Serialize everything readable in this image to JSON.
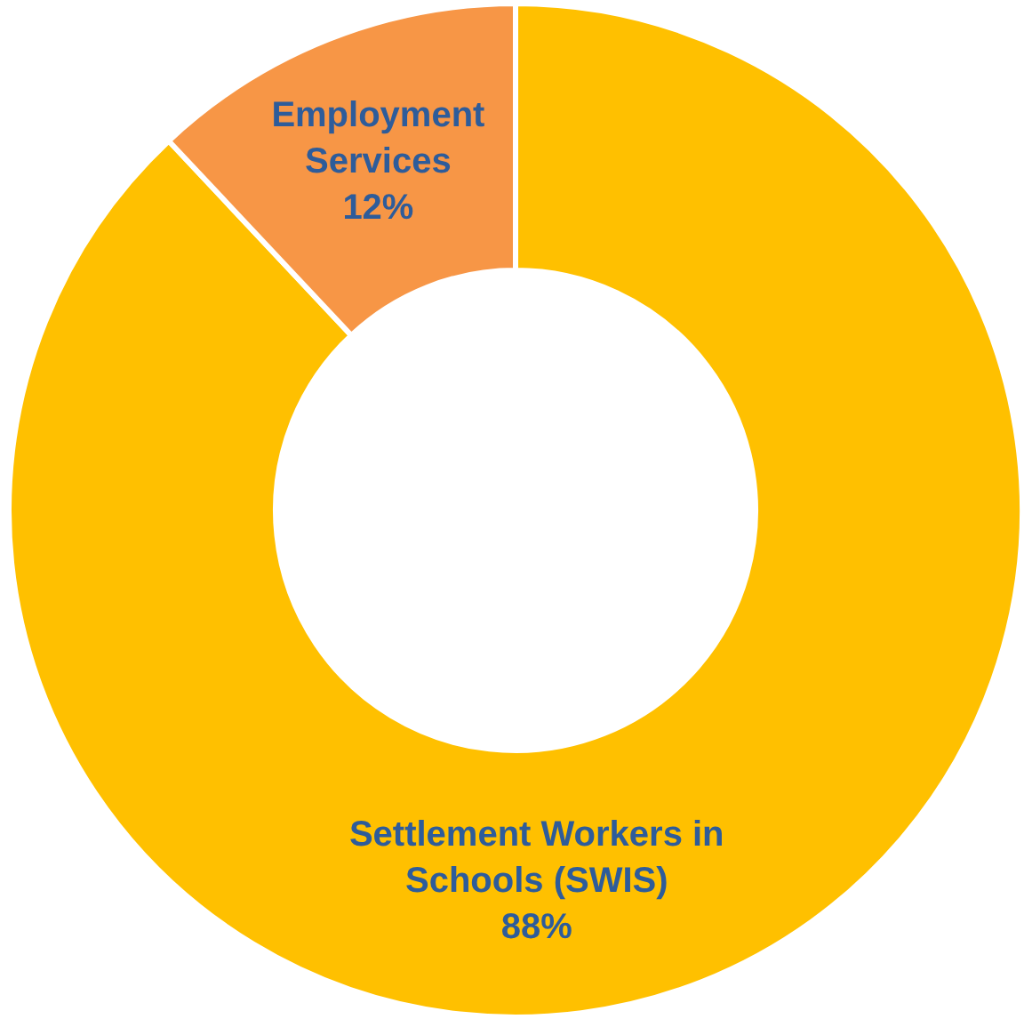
{
  "chart_data": {
    "type": "donut",
    "categories": [
      "Settlement Workers in Schools (SWIS)",
      "Employment Services"
    ],
    "values": [
      88,
      12
    ],
    "colors": [
      "#ffc000",
      "#f79646"
    ],
    "value_labels": [
      "88%",
      "12%"
    ]
  }
}
